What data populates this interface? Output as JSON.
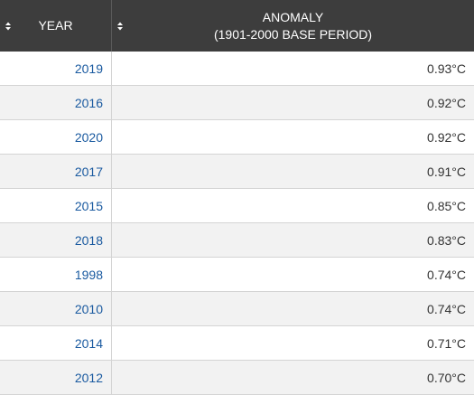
{
  "table": {
    "headers": {
      "year": "YEAR",
      "anomaly_line1": "ANOMALY",
      "anomaly_line2": "(1901-2000 BASE PERIOD)"
    },
    "rows": [
      {
        "year": "2019",
        "anomaly": "0.93°C"
      },
      {
        "year": "2016",
        "anomaly": "0.92°C"
      },
      {
        "year": "2020",
        "anomaly": "0.92°C"
      },
      {
        "year": "2017",
        "anomaly": "0.91°C"
      },
      {
        "year": "2015",
        "anomaly": "0.85°C"
      },
      {
        "year": "2018",
        "anomaly": "0.83°C"
      },
      {
        "year": "1998",
        "anomaly": "0.74°C"
      },
      {
        "year": "2010",
        "anomaly": "0.74°C"
      },
      {
        "year": "2014",
        "anomaly": "0.71°C"
      },
      {
        "year": "2012",
        "anomaly": "0.70°C"
      }
    ]
  },
  "colors": {
    "header_bg": "#3d3d3d",
    "year_link": "#1a5aa0",
    "row_stripe": "#f2f2f2"
  }
}
